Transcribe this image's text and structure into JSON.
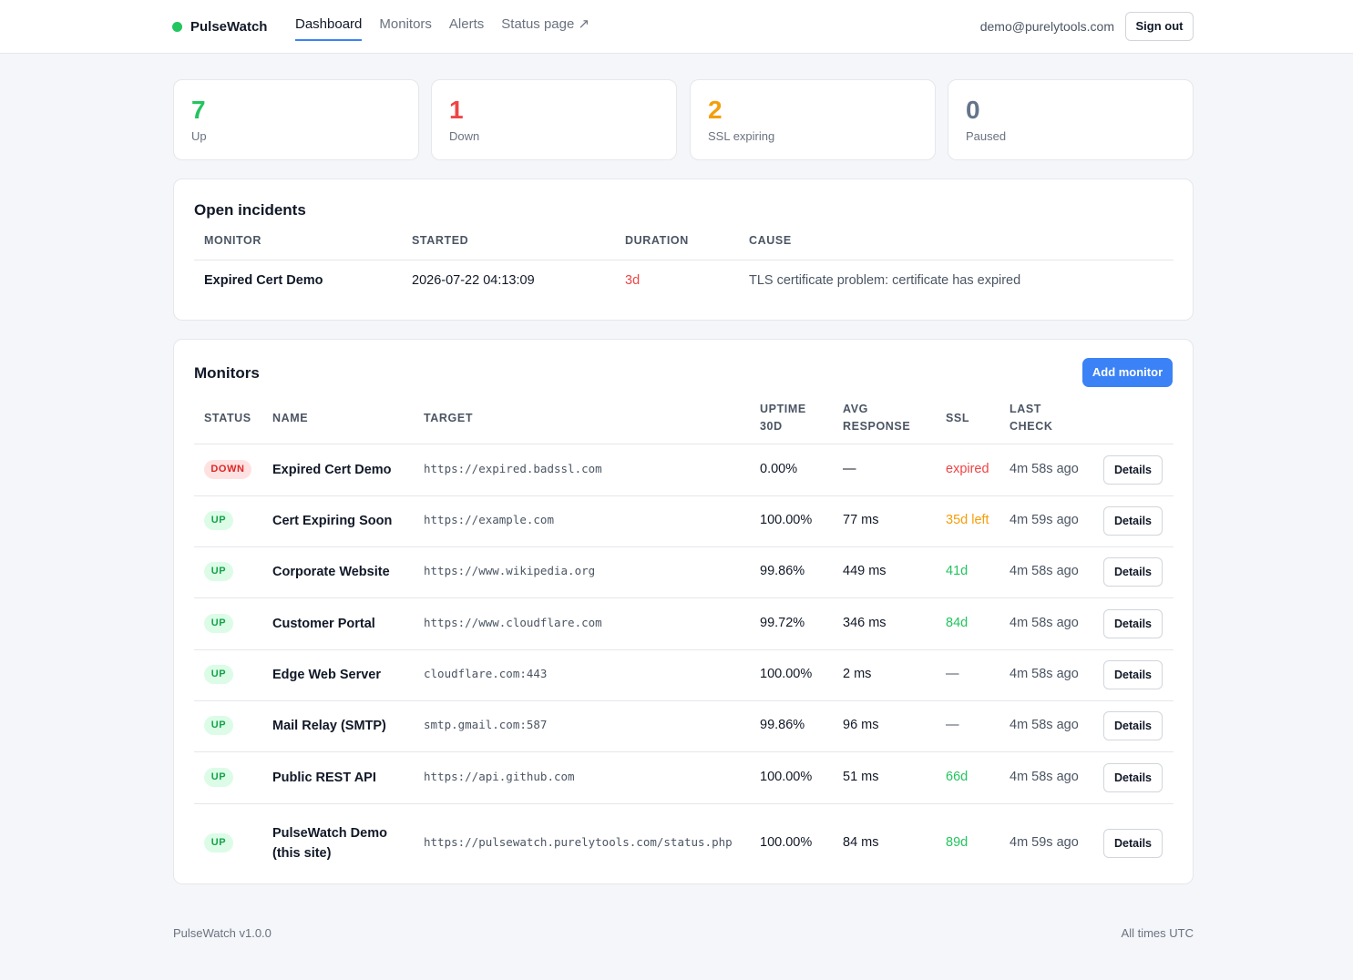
{
  "app": {
    "name": "PulseWatch",
    "status_color": "#22c55e"
  },
  "nav": {
    "items": [
      "Dashboard",
      "Monitors",
      "Alerts",
      "Status page ↗"
    ],
    "active": "Dashboard"
  },
  "user": {
    "email": "demo@purelytools.com",
    "signout_label": "Sign out"
  },
  "stats": [
    {
      "value": "7",
      "label": "Up",
      "color": "#22c55e"
    },
    {
      "value": "1",
      "label": "Down",
      "color": "#ef4444"
    },
    {
      "value": "2",
      "label": "SSL expiring",
      "color": "#f59e0b"
    },
    {
      "value": "0",
      "label": "Paused",
      "color": "#64748b"
    }
  ],
  "incidents": {
    "title": "Open incidents",
    "headers": [
      "MONITOR",
      "STARTED",
      "DURATION",
      "CAUSE"
    ],
    "rows": [
      {
        "monitor": "Expired Cert Demo",
        "started": "2026-07-22 04:13:09",
        "duration": "3d",
        "cause": "TLS certificate problem: certificate has expired"
      }
    ]
  },
  "monitors": {
    "title": "Monitors",
    "add_label": "Add monitor",
    "headers": {
      "status": "STATUS",
      "name": "NAME",
      "target": "TARGET",
      "uptime": [
        "UPTIME",
        "30D"
      ],
      "avg": [
        "AVG",
        "RESPONSE"
      ],
      "ssl": "SSL",
      "last": [
        "LAST",
        "CHECK"
      ]
    },
    "details_label": "Details",
    "rows": [
      {
        "status": "DOWN",
        "name": [
          "Expired Cert Demo"
        ],
        "target": "https://expired.badssl.com",
        "uptime": "0.00%",
        "avg": "—",
        "ssl": "expired",
        "ssl_state": "bad",
        "last": "4m 58s ago"
      },
      {
        "status": "UP",
        "name": [
          "Cert Expiring Soon"
        ],
        "target": "https://example.com",
        "uptime": "100.00%",
        "avg": "77 ms",
        "ssl": "35d left",
        "ssl_state": "warn",
        "last": "4m 59s ago"
      },
      {
        "status": "UP",
        "name": [
          "Corporate Website"
        ],
        "target": "https://www.wikipedia.org",
        "uptime": "99.86%",
        "avg": "449 ms",
        "ssl": "41d",
        "ssl_state": "ok",
        "last": "4m 58s ago"
      },
      {
        "status": "UP",
        "name": [
          "Customer Portal"
        ],
        "target": "https://www.cloudflare.com",
        "uptime": "99.72%",
        "avg": "346 ms",
        "ssl": "84d",
        "ssl_state": "ok",
        "last": "4m 58s ago"
      },
      {
        "status": "UP",
        "name": [
          "Edge Web Server"
        ],
        "target": "cloudflare.com:443",
        "uptime": "100.00%",
        "avg": "2 ms",
        "ssl": "—",
        "ssl_state": "none",
        "last": "4m 58s ago"
      },
      {
        "status": "UP",
        "name": [
          "Mail Relay (SMTP)"
        ],
        "target": "smtp.gmail.com:587",
        "uptime": "99.86%",
        "avg": "96 ms",
        "ssl": "—",
        "ssl_state": "none",
        "last": "4m 58s ago"
      },
      {
        "status": "UP",
        "name": [
          "Public REST API"
        ],
        "target": "https://api.github.com",
        "uptime": "100.00%",
        "avg": "51 ms",
        "ssl": "66d",
        "ssl_state": "ok",
        "last": "4m 58s ago"
      },
      {
        "status": "UP",
        "name": [
          "PulseWatch Demo",
          "(this site)"
        ],
        "target": "https://pulsewatch.purelytools.com/status.php",
        "uptime": "100.00%",
        "avg": "84 ms",
        "ssl": "89d",
        "ssl_state": "ok",
        "last": "4m 59s ago"
      }
    ]
  },
  "colors": {
    "accent": "#3b82f6",
    "up": "#22c55e",
    "down": "#ef4444",
    "warn": "#f59e0b",
    "paused": "#64748b"
  },
  "footer": {
    "version": "PulseWatch v1.0.0",
    "timezone": "All times UTC"
  }
}
